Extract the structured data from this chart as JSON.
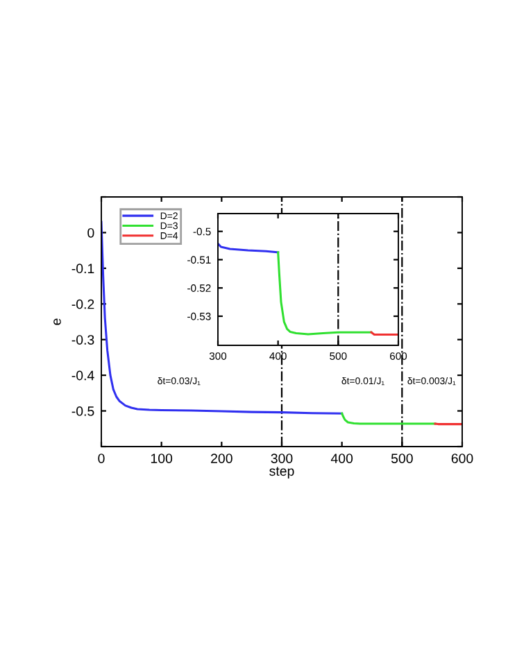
{
  "chart_data": [
    {
      "type": "line",
      "xlabel": "step",
      "ylabel": "e",
      "xlim": [
        0,
        600
      ],
      "ylim": [
        -0.6,
        0.1
      ],
      "xticks": [
        0,
        100,
        200,
        300,
        400,
        500,
        600
      ],
      "yticks": [
        {
          "value": -0.6,
          "label": null
        },
        -0.5,
        -0.4,
        -0.3,
        -0.2,
        -0.1,
        0,
        {
          "value": 0.1,
          "label": null
        }
      ],
      "legend": "top left",
      "grid": false,
      "series": [
        {
          "name": "D=2",
          "color": "#3030f0",
          "x": [
            0,
            3,
            6,
            10,
            15,
            20,
            25,
            30,
            40,
            50,
            60,
            80,
            100,
            150,
            200,
            250,
            300,
            350,
            400
          ],
          "values": [
            0.03,
            -0.12,
            -0.24,
            -0.33,
            -0.4,
            -0.44,
            -0.46,
            -0.472,
            -0.485,
            -0.491,
            -0.495,
            -0.497,
            -0.498,
            -0.499,
            -0.501,
            -0.503,
            -0.504,
            -0.506,
            -0.507
          ]
        },
        {
          "name": "D=3",
          "color": "#30e030",
          "x": [
            400,
            402,
            405,
            410,
            420,
            430,
            450,
            475,
            500,
            530,
            555
          ],
          "values": [
            -0.507,
            -0.515,
            -0.525,
            -0.532,
            -0.535,
            -0.536,
            -0.536,
            -0.536,
            -0.536,
            -0.536,
            -0.536
          ]
        },
        {
          "name": "D=4",
          "color": "#f03030",
          "x": [
            555,
            560,
            600
          ],
          "values": [
            -0.536,
            -0.537,
            -0.537
          ]
        }
      ],
      "ref_lines": [
        {
          "axis": "x",
          "value": 300,
          "color": "#000000",
          "line_style": "dashdot"
        },
        {
          "axis": "x",
          "value": 500,
          "color": "#000000",
          "line_style": "dashdot"
        }
      ],
      "annotations": [
        "δt=0.03/J₁",
        "δt=0.01/J₁",
        "δt=0.003/J₁"
      ]
    },
    {
      "type": "line",
      "xlim": [
        300,
        600
      ],
      "ylim": [
        -0.5403,
        -0.4937
      ],
      "xticks": [
        300,
        400,
        500,
        600
      ],
      "yticks": [
        -0.53,
        -0.52,
        -0.51,
        -0.5
      ],
      "grid": false,
      "series": [
        {
          "color": "#3030f0",
          "x": [
            300,
            305,
            320,
            350,
            380,
            400
          ],
          "values": [
            -0.5043,
            -0.5055,
            -0.5062,
            -0.5067,
            -0.507,
            -0.5074
          ]
        },
        {
          "color": "#30e030",
          "x": [
            400,
            402,
            405,
            410,
            415,
            420,
            430,
            450,
            475,
            500,
            530,
            555
          ],
          "values": [
            -0.5074,
            -0.515,
            -0.525,
            -0.532,
            -0.5345,
            -0.5355,
            -0.536,
            -0.5364,
            -0.536,
            -0.5357,
            -0.5357,
            -0.5357
          ]
        },
        {
          "color": "#f03030",
          "x": [
            555,
            560,
            600
          ],
          "values": [
            -0.5357,
            -0.5365,
            -0.5365
          ]
        }
      ],
      "ref_lines": [
        {
          "axis": "x",
          "value": 500,
          "color": "#000000",
          "line_style": "dashdot"
        }
      ]
    }
  ]
}
